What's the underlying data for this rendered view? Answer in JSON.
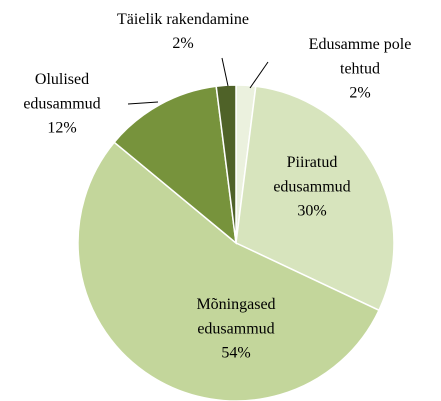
{
  "chart_data": {
    "type": "pie",
    "categories": [
      "Edusamme pole tehtud",
      "Piiratud edusammud",
      "Mõningased edusammud",
      "Olulised edusammud",
      "Täielik rakendamine"
    ],
    "values": [
      2,
      30,
      54,
      12,
      2
    ],
    "value_labels": [
      "2%",
      "30%",
      "54%",
      "12%",
      "2%"
    ],
    "colors": [
      "#ebf1de",
      "#d7e4bd",
      "#c3d69b",
      "#77933c",
      "#4f6228"
    ]
  }
}
